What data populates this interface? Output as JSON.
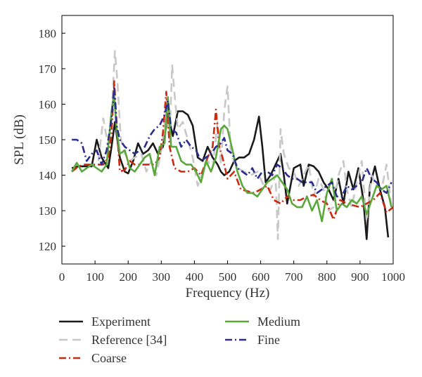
{
  "chart_data": {
    "type": "line",
    "title": "",
    "xlabel": "Frequency (Hz)",
    "ylabel": "SPL (dB)",
    "xlim": [
      0,
      1000
    ],
    "ylim": [
      115,
      185
    ],
    "xticks": [
      0,
      100,
      200,
      300,
      400,
      500,
      600,
      700,
      800,
      900,
      1000
    ],
    "yticks": [
      120,
      130,
      140,
      150,
      160,
      170,
      180
    ],
    "xtick_labels": [
      "0",
      "100",
      "200",
      "300",
      "400",
      "500",
      "600",
      "700",
      "800",
      "900",
      "1000"
    ],
    "ytick_labels": [
      "120",
      "130",
      "140",
      "150",
      "160",
      "170",
      "180"
    ],
    "grid": false,
    "legend_position": "bottom",
    "series": [
      {
        "name": "Experiment",
        "color": "#1a1a1a",
        "dash": "solid",
        "x": [
          30,
          50,
          70,
          90,
          105,
          120,
          140,
          150,
          160,
          175,
          190,
          200,
          215,
          230,
          245,
          260,
          275,
          290,
          305,
          320,
          335,
          350,
          365,
          380,
          395,
          410,
          425,
          440,
          455,
          470,
          480,
          490,
          505,
          520,
          535,
          550,
          565,
          580,
          595,
          605,
          615,
          630,
          645,
          660,
          670,
          680,
          690,
          700,
          710,
          720,
          730,
          745,
          760,
          775,
          790,
          805,
          820,
          835,
          850,
          865,
          880,
          895,
          910,
          920,
          930,
          945,
          960,
          975,
          985
        ],
        "y": [
          142,
          142.5,
          142.5,
          142.5,
          150,
          145,
          142,
          148,
          155,
          145,
          141,
          140.5,
          144,
          149,
          146,
          147,
          149,
          146,
          148,
          157,
          151,
          158,
          158,
          157,
          154,
          145,
          144,
          148,
          145,
          143,
          141,
          140,
          141,
          144,
          145,
          145,
          146,
          150,
          156.5,
          148,
          138,
          140,
          143,
          146,
          140,
          132,
          137,
          142,
          142.5,
          143,
          137,
          143,
          142.5,
          141,
          138,
          136,
          133,
          139,
          132,
          141,
          136,
          142,
          133,
          122,
          137,
          142.5,
          136,
          131,
          122.5
        ]
      },
      {
        "name": "Reference [34]",
        "color": "#c8c8c8",
        "dash": "long",
        "x": [
          110,
          125,
          140,
          150,
          160,
          168,
          178,
          190,
          205,
          220,
          240,
          255,
          270,
          285,
          300,
          315,
          325,
          333,
          340,
          350,
          365,
          380,
          395,
          410,
          425,
          440,
          455,
          470,
          480,
          490,
          500,
          510,
          530,
          550,
          570,
          590,
          610,
          630,
          645,
          652,
          660,
          670,
          685,
          700,
          715,
          730,
          745,
          760,
          775,
          790,
          805,
          820,
          835,
          850,
          860,
          875,
          890,
          905,
          920,
          935,
          950,
          965,
          980,
          995
        ],
        "y": [
          144,
          156,
          148,
          157,
          175,
          166,
          150,
          146,
          144,
          145,
          146,
          141,
          144,
          140,
          147,
          158,
          150,
          171,
          163,
          153,
          155,
          150,
          145,
          137,
          141,
          144,
          142,
          155,
          143,
          158,
          165,
          146,
          142,
          141,
          140,
          141,
          137,
          136,
          140,
          122,
          153,
          146,
          142,
          141,
          137,
          140,
          143,
          134,
          139,
          136,
          130,
          131,
          140,
          144,
          136,
          131,
          138,
          144,
          127,
          140,
          137,
          136,
          143,
          131
        ]
      },
      {
        "name": "Coarse",
        "color": "#cc2a10",
        "dash": "dashdot",
        "x": [
          30,
          50,
          70,
          90,
          110,
          125,
          140,
          150,
          158,
          165,
          175,
          190,
          205,
          220,
          240,
          260,
          280,
          295,
          305,
          315,
          325,
          340,
          360,
          380,
          400,
          420,
          440,
          455,
          465,
          475,
          485,
          500,
          520,
          540,
          560,
          580,
          600,
          620,
          640,
          660,
          680,
          700,
          720,
          740,
          760,
          780,
          800,
          820,
          840,
          860,
          880,
          900,
          920,
          940,
          960,
          980,
          1000
        ],
        "y": [
          141,
          142.5,
          143,
          143,
          143,
          143,
          145,
          152,
          166.5,
          155,
          141,
          141.5,
          144,
          143,
          143,
          143,
          143,
          145,
          152,
          163.5,
          148,
          142,
          141,
          141,
          142,
          140,
          145,
          148,
          158.5,
          148,
          145,
          139,
          141,
          136,
          135.5,
          135,
          136,
          137,
          133,
          132,
          134,
          133,
          133,
          134,
          134.5,
          133,
          132,
          127.5,
          133,
          132,
          131.5,
          131,
          132,
          133,
          135,
          129.5,
          131
        ]
      },
      {
        "name": "Medium",
        "color": "#5aa83c",
        "dash": "solid",
        "x": [
          30,
          45,
          60,
          75,
          90,
          105,
          120,
          135,
          150,
          158,
          165,
          175,
          190,
          205,
          220,
          235,
          250,
          265,
          280,
          295,
          310,
          320,
          330,
          345,
          360,
          375,
          390,
          405,
          420,
          435,
          450,
          465,
          480,
          490,
          500,
          515,
          530,
          545,
          560,
          575,
          590,
          605,
          620,
          635,
          650,
          665,
          680,
          695,
          710,
          725,
          740,
          755,
          770,
          785,
          800,
          815,
          830,
          845,
          860,
          875,
          890,
          905,
          920,
          935,
          950,
          965,
          980,
          995
        ],
        "y": [
          141,
          143.5,
          141,
          142,
          143,
          142,
          141,
          143,
          158,
          162.5,
          153,
          146,
          147,
          142,
          141,
          143,
          145,
          146,
          140,
          148,
          149,
          162,
          148,
          148,
          144,
          143,
          143,
          141,
          138,
          144,
          141,
          145,
          153,
          154,
          153,
          147,
          141,
          137,
          135,
          135,
          134,
          136,
          138,
          139,
          140,
          138,
          136,
          132,
          131,
          131,
          134,
          130,
          133,
          127,
          135,
          139,
          130,
          132,
          131,
          133,
          132,
          134,
          129,
          133,
          137,
          136,
          137,
          131
        ]
      },
      {
        "name": "Fine",
        "color": "#2c2c8c",
        "dash": "dashdot",
        "x": [
          30,
          45,
          60,
          75,
          90,
          105,
          120,
          135,
          150,
          158,
          165,
          175,
          190,
          205,
          220,
          235,
          250,
          265,
          280,
          295,
          310,
          320,
          330,
          345,
          360,
          375,
          390,
          405,
          420,
          435,
          450,
          465,
          480,
          490,
          500,
          515,
          530,
          545,
          560,
          575,
          590,
          605,
          620,
          635,
          650,
          665,
          680,
          695,
          710,
          725,
          740,
          755,
          770,
          785,
          800,
          815,
          830,
          845,
          860,
          875,
          890,
          905,
          920,
          935,
          950,
          965,
          980,
          995
        ],
        "y": [
          150,
          150,
          149,
          144,
          146,
          147,
          143,
          147,
          156,
          165,
          154,
          150,
          148,
          147,
          146,
          147,
          148,
          151,
          153,
          154,
          157,
          161,
          153,
          152,
          148,
          150,
          148,
          147,
          144,
          145,
          146,
          148,
          149,
          150.5,
          147,
          146,
          142,
          141,
          140,
          142,
          139,
          141,
          141,
          140,
          143,
          142,
          140,
          139,
          139,
          138,
          138,
          138,
          135,
          136,
          137,
          138,
          134,
          134,
          137,
          136,
          137,
          138,
          142,
          139,
          138,
          136,
          135,
          138
        ]
      }
    ]
  }
}
